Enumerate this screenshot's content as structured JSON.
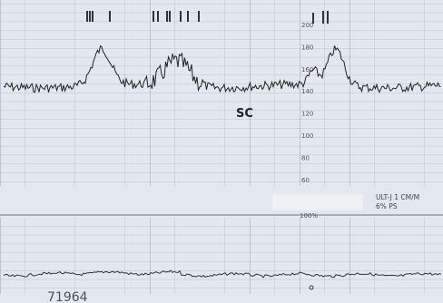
{
  "scale_labels": [
    "200",
    "180",
    "160",
    "140",
    "120",
    "100",
    "80",
    "60"
  ],
  "annotation": "SC",
  "uterine_scale_label": "100%",
  "machine_info": [
    "ULT-J  1 CM/M",
    "6% PS"
  ],
  "record_number": "71964"
}
